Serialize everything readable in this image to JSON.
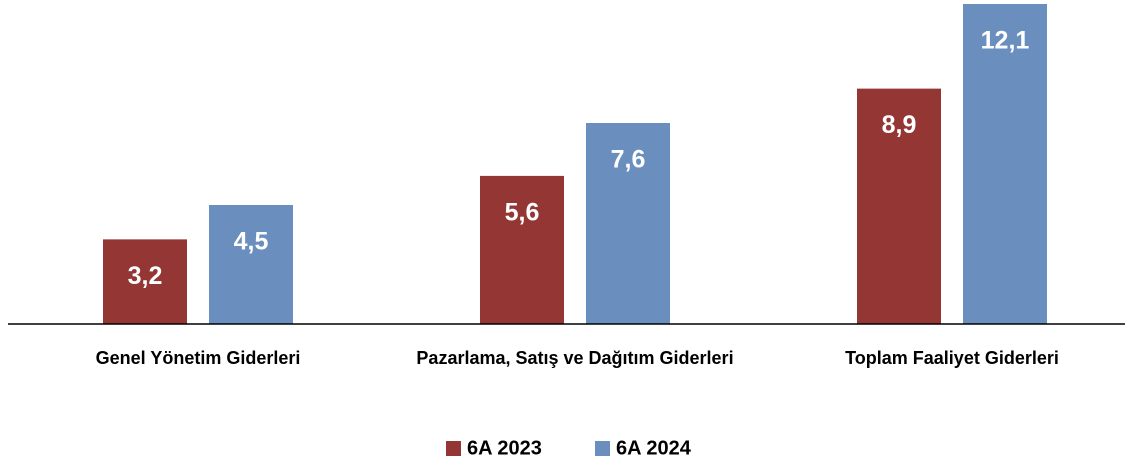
{
  "chart_data": {
    "type": "bar",
    "categories": [
      "Genel Yönetim Giderleri",
      "Pazarlama, Satış ve Dağıtım Giderleri",
      "Toplam Faaliyet Giderleri"
    ],
    "series": [
      {
        "name": "6A 2023",
        "color": "#943634",
        "values": [
          3.2,
          5.6,
          8.9
        ],
        "value_labels": [
          "3,2",
          "5,6",
          "8,9"
        ]
      },
      {
        "name": "6A 2024",
        "color": "#6a8fbf",
        "values": [
          4.5,
          7.6,
          12.1
        ],
        "value_labels": [
          "4,5",
          "7,6",
          "12,1"
        ]
      }
    ]
  }
}
